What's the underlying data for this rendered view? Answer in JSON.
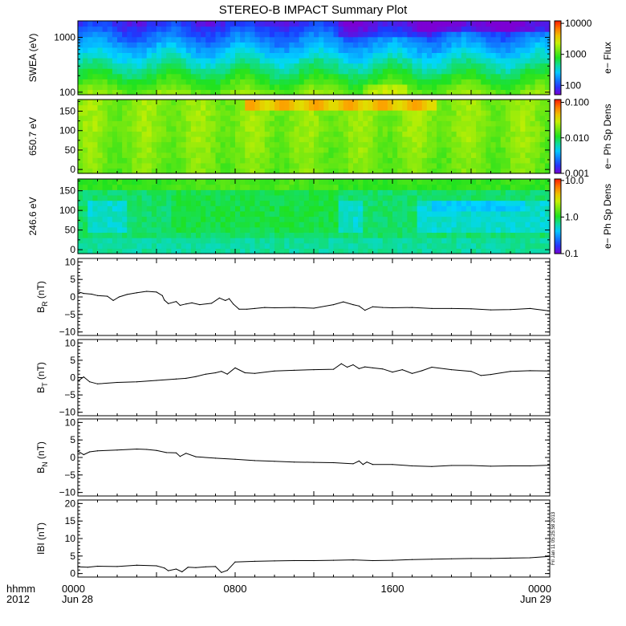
{
  "title": "STEREO-B IMPACT Summary Plot",
  "chart_data": {
    "type": "line",
    "title": "STEREO-B IMPACT Summary Plot",
    "x_ticks": [
      {
        "t": 0,
        "label": "0000",
        "sub": "Jun 28"
      },
      {
        "t": 8,
        "label": "0800",
        "sub": ""
      },
      {
        "t": 16,
        "label": "1600",
        "sub": ""
      },
      {
        "t": 24,
        "label": "0000",
        "sub": "Jun 29"
      }
    ],
    "x_label_row1": "hhmm",
    "x_label_row2": "2012",
    "xlim": [
      0,
      24
    ],
    "timestamp": "Fri Jan 11 05:25:58 2013",
    "spectrograms": [
      {
        "name": "swea",
        "ylabel": "SWEA (eV)",
        "scale": "log",
        "ylim": [
          90,
          2000
        ],
        "yticks": [
          {
            "v": 100,
            "label": "100"
          },
          {
            "v": 1000,
            "label": "1000"
          }
        ],
        "colorbar_label": "e− Flux",
        "colorbar_scale": "log",
        "colorbar_range": [
          50,
          12000
        ],
        "colorbar_ticks": [
          {
            "v": 100,
            "label": "100"
          },
          {
            "v": 1000,
            "label": "1000"
          },
          {
            "v": 10000,
            "label": "10000"
          }
        ]
      },
      {
        "name": "pad650",
        "ylabel": "650.7 eV",
        "scale": "linear",
        "ylim": [
          -10,
          180
        ],
        "yticks": [
          {
            "v": 0,
            "label": "0"
          },
          {
            "v": 50,
            "label": "50"
          },
          {
            "v": 100,
            "label": "100"
          },
          {
            "v": 150,
            "label": "150"
          }
        ],
        "colorbar_label": "e− Ph Sp Dens",
        "colorbar_scale": "log",
        "colorbar_range": [
          0.001,
          0.12
        ],
        "colorbar_ticks": [
          {
            "v": 0.001,
            "label": "0.001"
          },
          {
            "v": 0.01,
            "label": "0.010"
          },
          {
            "v": 0.1,
            "label": "0.100"
          }
        ]
      },
      {
        "name": "pad246",
        "ylabel": "246.6 eV",
        "scale": "linear",
        "ylim": [
          -10,
          180
        ],
        "yticks": [
          {
            "v": 0,
            "label": "0"
          },
          {
            "v": 50,
            "label": "50"
          },
          {
            "v": 100,
            "label": "100"
          },
          {
            "v": 150,
            "label": "150"
          }
        ],
        "colorbar_label": "e− Ph Sp Dens",
        "colorbar_scale": "log",
        "colorbar_range": [
          0.1,
          11
        ],
        "colorbar_ticks": [
          {
            "v": 0.1,
            "label": "0.1"
          },
          {
            "v": 1,
            "label": "1.0"
          },
          {
            "v": 10,
            "label": "10.0"
          }
        ]
      }
    ],
    "line_panels": [
      {
        "name": "br",
        "ylabel_main": "B",
        "ylabel_sub": "R",
        "ylabel_unit": " (nT)",
        "ylim": [
          -11,
          11
        ],
        "yticks": [
          {
            "v": -10,
            "label": "−10"
          },
          {
            "v": -5,
            "label": "−5"
          },
          {
            "v": 0,
            "label": "0"
          },
          {
            "v": 5,
            "label": "5"
          },
          {
            "v": 10,
            "label": "10"
          }
        ],
        "x": [
          0,
          0.3,
          0.7,
          1.0,
          1.5,
          1.8,
          2.1,
          2.5,
          3.0,
          3.5,
          4.0,
          4.3,
          4.4,
          4.6,
          5.0,
          5.2,
          5.5,
          5.8,
          6.2,
          6.8,
          7.2,
          7.5,
          7.7,
          7.9,
          8.2,
          8.6,
          9.0,
          9.5,
          10,
          11,
          12,
          13,
          13.5,
          14,
          14.3,
          14.6,
          15,
          15.5,
          16,
          17,
          18,
          19,
          20,
          21,
          22,
          23,
          24
        ],
        "values": [
          1.5,
          1.0,
          0.8,
          0.4,
          0.2,
          -1.0,
          0.0,
          0.7,
          1.2,
          1.6,
          1.4,
          0.4,
          -0.9,
          -1.9,
          -1.3,
          -2.4,
          -2.0,
          -1.7,
          -2.2,
          -1.8,
          -0.3,
          -1.0,
          -0.5,
          -2.0,
          -3.5,
          -3.5,
          -3.3,
          -3.0,
          -3.1,
          -3.0,
          -3.2,
          -2.2,
          -1.4,
          -2.2,
          -2.6,
          -3.8,
          -2.8,
          -3.0,
          -3.1,
          -3.0,
          -3.3,
          -3.3,
          -3.4,
          -3.7,
          -3.6,
          -3.3,
          -4.0
        ]
      },
      {
        "name": "bt",
        "ylabel_main": "B",
        "ylabel_sub": "T",
        "ylabel_unit": " (nT)",
        "ylim": [
          -11,
          11
        ],
        "yticks": [
          {
            "v": -10,
            "label": "−10"
          },
          {
            "v": -5,
            "label": "−5"
          },
          {
            "v": 0,
            "label": "0"
          },
          {
            "v": 5,
            "label": "5"
          },
          {
            "v": 10,
            "label": "10"
          }
        ],
        "x": [
          0,
          0.3,
          0.6,
          1.0,
          2.0,
          3.0,
          4.0,
          5.0,
          5.5,
          6.0,
          6.5,
          7.0,
          7.3,
          7.6,
          8.0,
          8.5,
          9.0,
          10,
          11,
          12,
          13,
          13.4,
          13.7,
          14.0,
          14.3,
          14.6,
          15,
          15.5,
          16,
          16.5,
          17,
          17.5,
          18,
          19,
          20,
          20.5,
          21,
          22,
          23,
          24
        ],
        "values": [
          -1.0,
          0.2,
          -1.2,
          -1.8,
          -1.4,
          -1.2,
          -0.8,
          -0.4,
          -0.2,
          0.3,
          1.0,
          1.4,
          1.8,
          1.0,
          2.8,
          1.4,
          1.2,
          1.9,
          2.1,
          2.3,
          2.4,
          4.0,
          3.0,
          3.7,
          2.6,
          3.1,
          2.8,
          2.5,
          1.6,
          2.3,
          1.2,
          2.0,
          3.0,
          2.3,
          1.8,
          0.6,
          0.9,
          1.8,
          2.0,
          1.9
        ]
      },
      {
        "name": "bn",
        "ylabel_main": "B",
        "ylabel_sub": "N",
        "ylabel_unit": " (nT)",
        "ylim": [
          -11,
          11
        ],
        "yticks": [
          {
            "v": -10,
            "label": "−10"
          },
          {
            "v": -5,
            "label": "−5"
          },
          {
            "v": 0,
            "label": "0"
          },
          {
            "v": 5,
            "label": "5"
          },
          {
            "v": 10,
            "label": "10"
          }
        ],
        "x": [
          0,
          0.3,
          0.6,
          1.0,
          2.0,
          3.0,
          3.5,
          4.0,
          4.5,
          5.0,
          5.2,
          5.5,
          6.0,
          7.0,
          8.0,
          9.0,
          10,
          11,
          12,
          13,
          14,
          14.3,
          14.5,
          14.7,
          15,
          16,
          17,
          18,
          19,
          20,
          21,
          22,
          23,
          24
        ],
        "values": [
          1.8,
          0.8,
          1.6,
          1.9,
          2.1,
          2.4,
          2.3,
          2.0,
          1.4,
          1.3,
          0.3,
          1.2,
          0.2,
          -0.2,
          -0.5,
          -0.9,
          -1.1,
          -1.3,
          -1.4,
          -1.5,
          -1.8,
          -1.0,
          -2.0,
          -1.3,
          -2.0,
          -2.0,
          -2.4,
          -2.6,
          -2.3,
          -2.3,
          -2.5,
          -2.4,
          -2.4,
          -2.2
        ]
      },
      {
        "name": "bmag",
        "ylabel_main": "IBI",
        "ylabel_sub": "",
        "ylabel_unit": " (nT)",
        "ylim": [
          -1,
          21
        ],
        "yticks": [
          {
            "v": 0,
            "label": "0"
          },
          {
            "v": 5,
            "label": "5"
          },
          {
            "v": 10,
            "label": "10"
          },
          {
            "v": 15,
            "label": "15"
          },
          {
            "v": 20,
            "label": "20"
          }
        ],
        "x": [
          0,
          0.5,
          1.0,
          2.0,
          3.0,
          4.0,
          4.4,
          4.6,
          5.0,
          5.3,
          5.6,
          6.0,
          6.5,
          7.0,
          7.3,
          7.6,
          8.0,
          9.0,
          10,
          11,
          12,
          13,
          14,
          15,
          16,
          17,
          18,
          19,
          20,
          21,
          22,
          23,
          24
        ],
        "values": [
          1.9,
          1.8,
          2.1,
          2.0,
          2.4,
          2.2,
          1.6,
          0.8,
          1.3,
          0.5,
          1.8,
          1.7,
          1.9,
          2.0,
          0.3,
          0.9,
          3.3,
          3.5,
          3.6,
          3.7,
          3.7,
          3.8,
          3.9,
          3.7,
          3.8,
          4.0,
          4.1,
          4.2,
          4.3,
          4.3,
          4.4,
          4.5,
          4.9
        ]
      }
    ]
  }
}
